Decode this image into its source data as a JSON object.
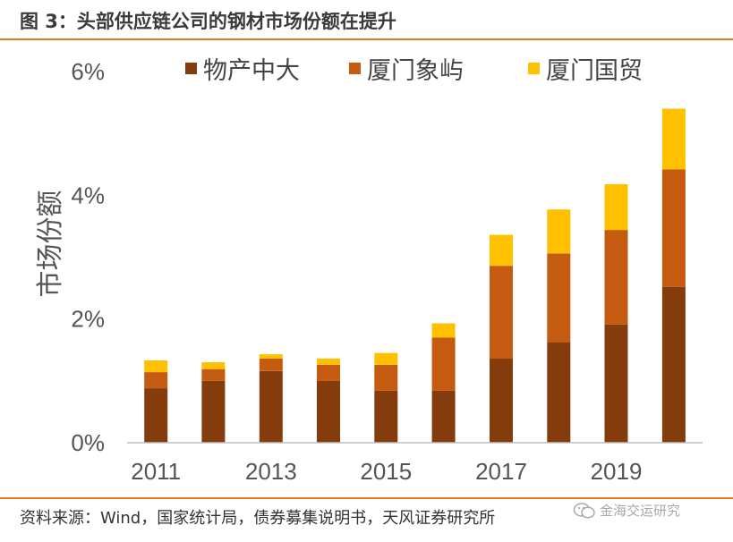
{
  "figure": {
    "title": "图 3：头部供应链公司的钢材市场份额在提升",
    "source": "资料来源：Wind，国家统计局，债券募集说明书，天风证券研究所",
    "watermark": "金海交运研究"
  },
  "colors": {
    "accent_rule": "#e07a1f",
    "wuchan": "#843c0c",
    "xiangyu": "#c55a11",
    "guomao": "#ffc000"
  },
  "chart_data": {
    "type": "bar",
    "stacked": true,
    "title": "",
    "xlabel": "",
    "ylabel": "市场份额",
    "ylim": [
      0,
      6
    ],
    "yticks": [
      0,
      2,
      4,
      6
    ],
    "ytick_labels": [
      "0%",
      "2%",
      "4%",
      "6%"
    ],
    "categories": [
      "2011",
      "2012",
      "2013",
      "2014",
      "2015",
      "2016",
      "2017",
      "2018",
      "2019",
      "2020"
    ],
    "xtick_labels": [
      "2011",
      "",
      "2013",
      "",
      "2015",
      "",
      "2017",
      "",
      "2019",
      ""
    ],
    "legend_position": "top",
    "grid": false,
    "series": [
      {
        "name": "物产中大",
        "color": "#843c0c",
        "values": [
          0.88,
          1.0,
          1.16,
          1.0,
          0.84,
          0.84,
          1.36,
          1.62,
          1.91,
          2.52
        ]
      },
      {
        "name": "厦门象屿",
        "color": "#c55a11",
        "values": [
          0.26,
          0.19,
          0.2,
          0.26,
          0.42,
          0.86,
          1.5,
          1.44,
          1.53,
          1.9
        ]
      },
      {
        "name": "厦门国贸",
        "color": "#ffc000",
        "values": [
          0.19,
          0.11,
          0.07,
          0.1,
          0.19,
          0.23,
          0.5,
          0.71,
          0.74,
          0.98
        ]
      }
    ]
  }
}
